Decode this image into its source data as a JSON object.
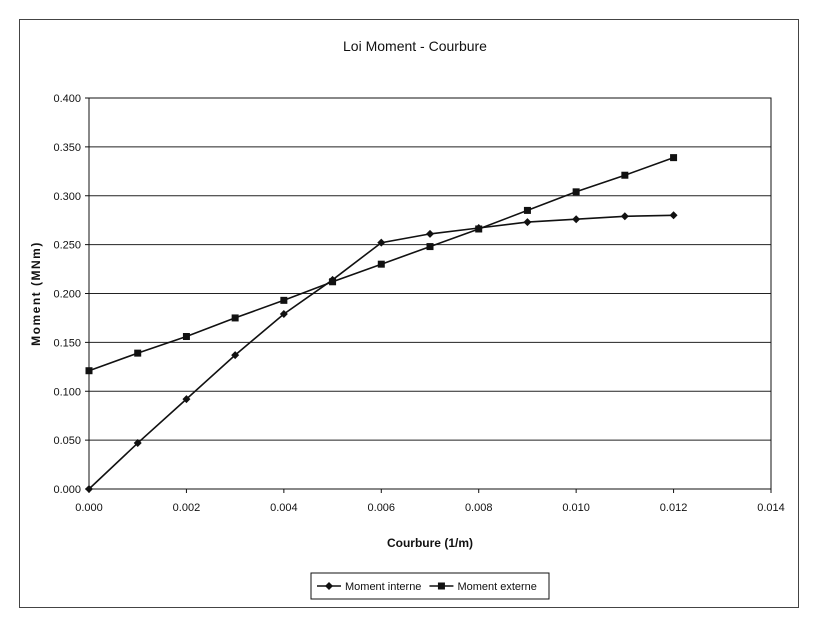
{
  "chart_data": {
    "type": "line",
    "title": "Loi Moment - Courbure",
    "xlabel": "Courbure (1/m)",
    "ylabel": "Moment (MNm)",
    "xlim": [
      0,
      0.014
    ],
    "ylim": [
      0,
      0.4
    ],
    "x_ticks": [
      "0.000",
      "0.002",
      "0.004",
      "0.006",
      "0.008",
      "0.010",
      "0.012",
      "0.014"
    ],
    "y_ticks": [
      "0.000",
      "0.050",
      "0.100",
      "0.150",
      "0.200",
      "0.250",
      "0.300",
      "0.350",
      "0.400"
    ],
    "grid": "horizontal",
    "legend_position": "bottom",
    "series": [
      {
        "name": "Moment interne",
        "marker": "diamond",
        "color": "#111111",
        "x": [
          0,
          0.001,
          0.002,
          0.003,
          0.004,
          0.005,
          0.006,
          0.007,
          0.008,
          0.009,
          0.01,
          0.011,
          0.012
        ],
        "y": [
          0,
          0.047,
          0.092,
          0.137,
          0.179,
          0.214,
          0.252,
          0.261,
          0.267,
          0.273,
          0.276,
          0.279,
          0.28
        ]
      },
      {
        "name": "Moment externe",
        "marker": "square",
        "color": "#111111",
        "x": [
          0,
          0.001,
          0.002,
          0.003,
          0.004,
          0.005,
          0.006,
          0.007,
          0.008,
          0.009,
          0.01,
          0.011,
          0.012
        ],
        "y": [
          0.121,
          0.139,
          0.156,
          0.175,
          0.193,
          0.212,
          0.23,
          0.248,
          0.266,
          0.285,
          0.304,
          0.321,
          0.339
        ]
      }
    ]
  }
}
